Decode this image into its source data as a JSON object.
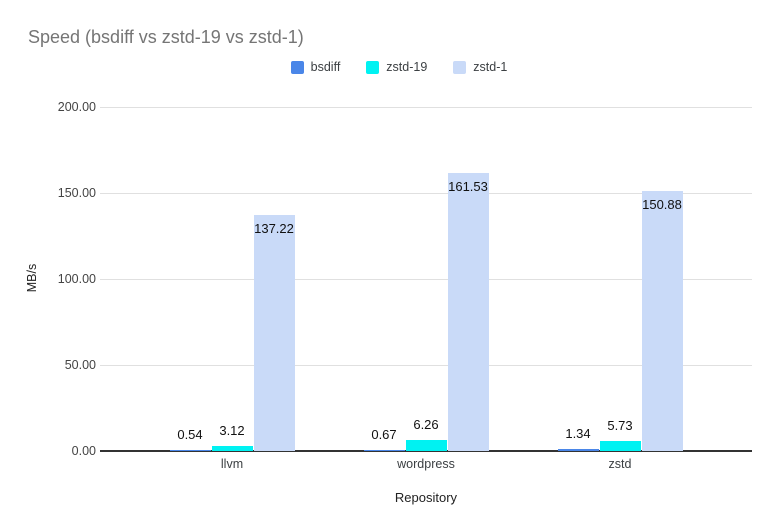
{
  "title": "Speed (bsdiff vs zstd-19 vs zstd-1)",
  "colors": {
    "title_text": "#757575",
    "gridline": "#e0e0e0",
    "axis_line": "#333333",
    "bsdiff": "#4a86e8",
    "zstd19": "#00f2f2",
    "zstd1": "#c9daf8"
  },
  "chart_data": {
    "type": "bar",
    "title": "Speed (bsdiff vs zstd-19 vs zstd-1)",
    "xlabel": "Repository",
    "ylabel": "MB/s",
    "ylim": [
      0,
      200
    ],
    "grid": true,
    "legend_position": "top",
    "categories": [
      "llvm",
      "wordpress",
      "zstd"
    ],
    "series": [
      {
        "name": "bsdiff",
        "color": "#4a86e8",
        "values": [
          0.54,
          0.67,
          1.34
        ],
        "labels": [
          "0.54",
          "0.67",
          "1.34"
        ]
      },
      {
        "name": "zstd-19",
        "color": "#00f2f2",
        "values": [
          3.12,
          6.26,
          5.73
        ],
        "labels": [
          "3.12",
          "6.26",
          "5.73"
        ]
      },
      {
        "name": "zstd-1",
        "color": "#c9daf8",
        "values": [
          137.22,
          161.53,
          150.88
        ],
        "labels": [
          "137.22",
          "161.53",
          "150.88"
        ]
      }
    ],
    "yticks": [
      {
        "value": 0,
        "label": "0.00"
      },
      {
        "value": 50,
        "label": "50.00"
      },
      {
        "value": 100,
        "label": "100.00"
      },
      {
        "value": 150,
        "label": "150.00"
      },
      {
        "value": 200,
        "label": "200.00"
      }
    ]
  }
}
